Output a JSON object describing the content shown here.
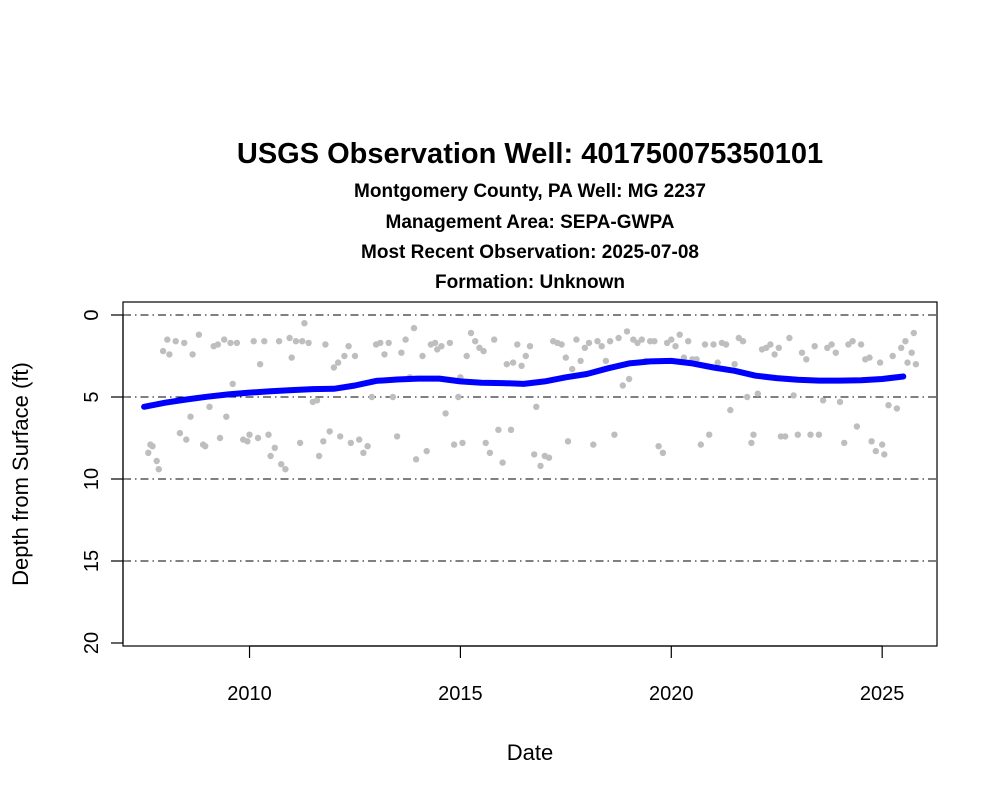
{
  "chart_data": {
    "type": "scatter",
    "title": "USGS Observation Well:  401750075350101",
    "subtitles": [
      "Montgomery County, PA   Well: MG 2237",
      "Management Area: SEPA-GWPA",
      "Most Recent Observation: 2025-07-08",
      "Formation: Unknown"
    ],
    "xlabel": "Date",
    "ylabel": "Depth from Surface (ft)",
    "xlim": [
      2007.0,
      2026.3
    ],
    "ylim": [
      0,
      20
    ],
    "y_reversed": true,
    "x_ticks": [
      2010,
      2015,
      2020,
      2025
    ],
    "x_tick_labels": [
      "2010",
      "2015",
      "2020",
      "2025"
    ],
    "y_ticks": [
      0,
      5,
      10,
      15,
      20
    ],
    "y_tick_labels": [
      "0",
      "5",
      "10",
      "15",
      "20"
    ],
    "gridlines_y": [
      0,
      5,
      10,
      15
    ],
    "grid": "horizontal dash-dot",
    "colors": {
      "points": "#bebebe",
      "trend": "#0000ff",
      "grid": "#000000"
    },
    "series": [
      {
        "type": "scatter",
        "points": [
          [
            2007.6,
            8.4
          ],
          [
            2007.65,
            7.9
          ],
          [
            2007.7,
            8.0
          ],
          [
            2007.8,
            8.9
          ],
          [
            2007.85,
            9.4
          ],
          [
            2007.95,
            2.2
          ],
          [
            2008.05,
            1.5
          ],
          [
            2008.1,
            2.4
          ],
          [
            2008.25,
            1.6
          ],
          [
            2008.35,
            7.2
          ],
          [
            2008.45,
            1.7
          ],
          [
            2008.5,
            7.6
          ],
          [
            2008.6,
            6.2
          ],
          [
            2008.65,
            2.4
          ],
          [
            2008.8,
            1.2
          ],
          [
            2008.9,
            7.9
          ],
          [
            2008.95,
            8.0
          ],
          [
            2009.05,
            5.6
          ],
          [
            2009.15,
            1.9
          ],
          [
            2009.25,
            1.8
          ],
          [
            2009.3,
            7.5
          ],
          [
            2009.4,
            1.5
          ],
          [
            2009.45,
            6.2
          ],
          [
            2009.55,
            1.7
          ],
          [
            2009.6,
            4.2
          ],
          [
            2009.7,
            1.7
          ],
          [
            2009.85,
            7.6
          ],
          [
            2009.95,
            7.7
          ],
          [
            2010.0,
            7.3
          ],
          [
            2010.1,
            1.6
          ],
          [
            2010.2,
            7.5
          ],
          [
            2010.25,
            3.0
          ],
          [
            2010.35,
            1.6
          ],
          [
            2010.45,
            7.3
          ],
          [
            2010.5,
            8.6
          ],
          [
            2010.6,
            8.1
          ],
          [
            2010.7,
            1.6
          ],
          [
            2010.75,
            9.1
          ],
          [
            2010.85,
            9.4
          ],
          [
            2010.95,
            1.4
          ],
          [
            2011.0,
            2.6
          ],
          [
            2011.1,
            1.6
          ],
          [
            2011.2,
            7.8
          ],
          [
            2011.25,
            1.6
          ],
          [
            2011.3,
            0.5
          ],
          [
            2011.4,
            1.7
          ],
          [
            2011.5,
            5.3
          ],
          [
            2011.6,
            5.2
          ],
          [
            2011.65,
            8.6
          ],
          [
            2011.75,
            7.7
          ],
          [
            2011.8,
            1.8
          ],
          [
            2011.9,
            7.1
          ],
          [
            2012.0,
            3.2
          ],
          [
            2012.1,
            2.9
          ],
          [
            2012.15,
            7.4
          ],
          [
            2012.25,
            2.5
          ],
          [
            2012.35,
            1.9
          ],
          [
            2012.4,
            7.8
          ],
          [
            2012.5,
            2.5
          ],
          [
            2012.6,
            7.6
          ],
          [
            2012.7,
            8.4
          ],
          [
            2012.8,
            8.0
          ],
          [
            2012.9,
            5.0
          ],
          [
            2013.0,
            1.8
          ],
          [
            2013.1,
            1.7
          ],
          [
            2013.2,
            2.4
          ],
          [
            2013.3,
            1.7
          ],
          [
            2013.4,
            5.0
          ],
          [
            2013.5,
            7.4
          ],
          [
            2013.6,
            2.3
          ],
          [
            2013.7,
            1.5
          ],
          [
            2013.8,
            3.8
          ],
          [
            2013.9,
            0.8
          ],
          [
            2013.95,
            8.8
          ],
          [
            2014.1,
            2.5
          ],
          [
            2014.2,
            8.3
          ],
          [
            2014.3,
            1.8
          ],
          [
            2014.4,
            1.7
          ],
          [
            2014.45,
            2.1
          ],
          [
            2014.55,
            1.9
          ],
          [
            2014.65,
            6.0
          ],
          [
            2014.75,
            1.7
          ],
          [
            2014.85,
            7.9
          ],
          [
            2014.95,
            5.0
          ],
          [
            2015.0,
            3.8
          ],
          [
            2015.05,
            7.8
          ],
          [
            2015.15,
            2.5
          ],
          [
            2015.25,
            1.1
          ],
          [
            2015.35,
            1.6
          ],
          [
            2015.45,
            2.0
          ],
          [
            2015.55,
            2.2
          ],
          [
            2015.6,
            7.8
          ],
          [
            2015.7,
            8.4
          ],
          [
            2015.8,
            1.5
          ],
          [
            2015.9,
            7.0
          ],
          [
            2016.0,
            9.0
          ],
          [
            2016.1,
            3.0
          ],
          [
            2016.2,
            7.0
          ],
          [
            2016.25,
            2.9
          ],
          [
            2016.35,
            1.8
          ],
          [
            2016.45,
            3.1
          ],
          [
            2016.55,
            2.5
          ],
          [
            2016.65,
            1.9
          ],
          [
            2016.75,
            8.5
          ],
          [
            2016.8,
            5.6
          ],
          [
            2016.9,
            9.2
          ],
          [
            2017.0,
            8.6
          ],
          [
            2017.1,
            8.7
          ],
          [
            2017.2,
            1.6
          ],
          [
            2017.3,
            1.7
          ],
          [
            2017.4,
            1.8
          ],
          [
            2017.5,
            2.6
          ],
          [
            2017.55,
            7.7
          ],
          [
            2017.65,
            3.3
          ],
          [
            2017.75,
            1.5
          ],
          [
            2017.85,
            2.8
          ],
          [
            2017.95,
            2.0
          ],
          [
            2018.05,
            1.7
          ],
          [
            2018.15,
            7.9
          ],
          [
            2018.25,
            1.6
          ],
          [
            2018.35,
            1.9
          ],
          [
            2018.45,
            2.8
          ],
          [
            2018.55,
            1.6
          ],
          [
            2018.65,
            7.3
          ],
          [
            2018.75,
            1.4
          ],
          [
            2018.85,
            4.3
          ],
          [
            2018.95,
            1.0
          ],
          [
            2019.0,
            3.9
          ],
          [
            2019.1,
            1.5
          ],
          [
            2019.2,
            1.7
          ],
          [
            2019.3,
            1.5
          ],
          [
            2019.4,
            2.8
          ],
          [
            2019.5,
            1.6
          ],
          [
            2019.6,
            1.6
          ],
          [
            2019.7,
            8.0
          ],
          [
            2019.8,
            8.4
          ],
          [
            2019.9,
            1.7
          ],
          [
            2020.0,
            1.5
          ],
          [
            2020.1,
            1.9
          ],
          [
            2020.2,
            1.2
          ],
          [
            2020.3,
            2.6
          ],
          [
            2020.4,
            1.6
          ],
          [
            2020.5,
            2.7
          ],
          [
            2020.6,
            2.7
          ],
          [
            2020.7,
            7.9
          ],
          [
            2020.8,
            1.8
          ],
          [
            2020.9,
            7.3
          ],
          [
            2021.0,
            1.8
          ],
          [
            2021.1,
            2.9
          ],
          [
            2021.2,
            1.7
          ],
          [
            2021.3,
            1.8
          ],
          [
            2021.4,
            5.8
          ],
          [
            2021.5,
            3.0
          ],
          [
            2021.6,
            1.4
          ],
          [
            2021.7,
            1.6
          ],
          [
            2021.8,
            5.0
          ],
          [
            2021.9,
            7.8
          ],
          [
            2021.95,
            7.3
          ],
          [
            2022.05,
            4.8
          ],
          [
            2022.15,
            2.1
          ],
          [
            2022.25,
            2.0
          ],
          [
            2022.35,
            1.8
          ],
          [
            2022.45,
            2.4
          ],
          [
            2022.55,
            2.0
          ],
          [
            2022.6,
            7.4
          ],
          [
            2022.7,
            7.4
          ],
          [
            2022.8,
            1.4
          ],
          [
            2022.9,
            4.9
          ],
          [
            2023.0,
            7.3
          ],
          [
            2023.1,
            2.3
          ],
          [
            2023.2,
            2.7
          ],
          [
            2023.3,
            7.3
          ],
          [
            2023.4,
            1.9
          ],
          [
            2023.5,
            7.3
          ],
          [
            2023.6,
            5.2
          ],
          [
            2023.7,
            2.0
          ],
          [
            2023.8,
            1.8
          ],
          [
            2023.9,
            2.3
          ],
          [
            2024.0,
            5.3
          ],
          [
            2024.1,
            7.8
          ],
          [
            2024.2,
            1.8
          ],
          [
            2024.3,
            1.6
          ],
          [
            2024.4,
            6.8
          ],
          [
            2024.5,
            1.8
          ],
          [
            2024.6,
            2.7
          ],
          [
            2024.7,
            2.6
          ],
          [
            2024.75,
            7.7
          ],
          [
            2024.85,
            8.3
          ],
          [
            2024.95,
            2.9
          ],
          [
            2025.0,
            7.9
          ],
          [
            2025.05,
            8.5
          ],
          [
            2025.15,
            5.5
          ],
          [
            2025.25,
            2.5
          ],
          [
            2025.35,
            5.7
          ],
          [
            2025.45,
            2.0
          ],
          [
            2025.55,
            1.6
          ],
          [
            2025.6,
            2.9
          ],
          [
            2025.7,
            2.3
          ],
          [
            2025.75,
            1.1
          ],
          [
            2025.8,
            3.0
          ]
        ]
      },
      {
        "type": "line",
        "points": [
          [
            2007.5,
            5.6
          ],
          [
            2008.0,
            5.35
          ],
          [
            2008.5,
            5.15
          ],
          [
            2009.0,
            4.98
          ],
          [
            2009.5,
            4.84
          ],
          [
            2010.0,
            4.73
          ],
          [
            2010.5,
            4.65
          ],
          [
            2011.0,
            4.58
          ],
          [
            2011.5,
            4.52
          ],
          [
            2012.0,
            4.5
          ],
          [
            2012.5,
            4.3
          ],
          [
            2013.0,
            4.02
          ],
          [
            2013.5,
            3.93
          ],
          [
            2014.0,
            3.88
          ],
          [
            2014.5,
            3.88
          ],
          [
            2015.0,
            4.05
          ],
          [
            2015.5,
            4.13
          ],
          [
            2016.0,
            4.15
          ],
          [
            2016.5,
            4.2
          ],
          [
            2017.0,
            4.05
          ],
          [
            2017.5,
            3.8
          ],
          [
            2018.0,
            3.6
          ],
          [
            2018.5,
            3.25
          ],
          [
            2019.0,
            2.95
          ],
          [
            2019.5,
            2.83
          ],
          [
            2020.0,
            2.8
          ],
          [
            2020.5,
            2.95
          ],
          [
            2021.0,
            3.2
          ],
          [
            2021.5,
            3.4
          ],
          [
            2022.0,
            3.7
          ],
          [
            2022.5,
            3.85
          ],
          [
            2023.0,
            3.95
          ],
          [
            2023.5,
            4.0
          ],
          [
            2024.0,
            4.0
          ],
          [
            2024.5,
            3.98
          ],
          [
            2025.0,
            3.9
          ],
          [
            2025.5,
            3.75
          ]
        ]
      }
    ]
  }
}
